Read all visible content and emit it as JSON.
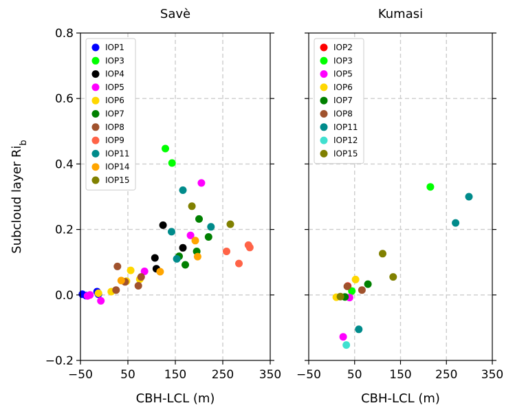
{
  "chart_data": {
    "type": "scatter",
    "ylabel": "Subcloud layer Ri",
    "ylabel_subscript": "b",
    "ylim": [
      -0.2,
      0.8
    ],
    "yticks": [
      {
        "value": -0.2,
        "label": "−0.2"
      },
      {
        "value": 0.0,
        "label": "0.0"
      },
      {
        "value": 0.2,
        "label": "0.2"
      },
      {
        "value": 0.4,
        "label": "0.4"
      },
      {
        "value": 0.6,
        "label": "0.6"
      },
      {
        "value": 0.8,
        "label": "0.8"
      }
    ],
    "grid": true,
    "legend_position": "top-left",
    "panels": [
      {
        "title": "Savè",
        "xlabel": "CBH-LCL (m)",
        "xlim": [
          -50,
          350
        ],
        "xticks": [
          {
            "value": -50,
            "label": "−50"
          },
          {
            "value": 50,
            "label": "50"
          },
          {
            "value": 150,
            "label": "150"
          },
          {
            "value": 250,
            "label": "250"
          },
          {
            "value": 350,
            "label": "350"
          }
        ],
        "series": [
          {
            "name": "IOP1",
            "color": "#0000ff",
            "points": [
              [
                -46,
                0.002
              ],
              [
                -38,
                -0.002
              ],
              [
                -15,
                0.01
              ],
              [
                -12,
                0.002
              ]
            ]
          },
          {
            "name": "IOP3",
            "color": "#00ff00",
            "points": [
              [
                129,
                0.447
              ],
              [
                143,
                0.403
              ]
            ]
          },
          {
            "name": "IOP4",
            "color": "#000000",
            "points": [
              [
                124,
                0.213
              ],
              [
                107,
                0.113
              ],
              [
                110,
                0.08
              ],
              [
                166,
                0.144
              ]
            ]
          },
          {
            "name": "IOP5",
            "color": "#ff00ff",
            "points": [
              [
                -35,
                -0.003
              ],
              [
                -30,
                0.0
              ],
              [
                -7,
                -0.018
              ],
              [
                85,
                0.072
              ],
              [
                182,
                0.182
              ],
              [
                205,
                0.342
              ]
            ]
          },
          {
            "name": "IOP6",
            "color": "#ffd700",
            "points": [
              [
                -12,
                0.005
              ],
              [
                15,
                0.01
              ],
              [
                56,
                0.075
              ],
              [
                47,
                0.042
              ],
              [
                75,
                0.048
              ]
            ]
          },
          {
            "name": "IOP7",
            "color": "#008000",
            "points": [
              [
                158,
                0.118
              ],
              [
                171,
                0.092
              ],
              [
                195,
                0.133
              ],
              [
                200,
                0.232
              ],
              [
                220,
                0.177
              ]
            ]
          },
          {
            "name": "IOP8",
            "color": "#a0522d",
            "points": [
              [
                28,
                0.087
              ],
              [
                25,
                0.015
              ],
              [
                44,
                0.04
              ],
              [
                72,
                0.028
              ],
              [
                78,
                0.055
              ]
            ]
          },
          {
            "name": "IOP9",
            "color": "#ff6347",
            "points": [
              [
                258,
                0.133
              ],
              [
                284,
                0.096
              ],
              [
                304,
                0.152
              ],
              [
                307,
                0.145
              ]
            ]
          },
          {
            "name": "IOP11",
            "color": "#008b8b",
            "points": [
              [
                142,
                0.193
              ],
              [
                166,
                0.32
              ],
              [
                153,
                0.11
              ],
              [
                225,
                0.208
              ]
            ]
          },
          {
            "name": "IOP14",
            "color": "#ffa500",
            "points": [
              [
                36,
                0.044
              ],
              [
                118,
                0.071
              ],
              [
                192,
                0.166
              ],
              [
                197,
                0.117
              ]
            ]
          },
          {
            "name": "IOP15",
            "color": "#808000",
            "points": [
              [
                185,
                0.271
              ],
              [
                266,
                0.216
              ]
            ]
          }
        ]
      },
      {
        "title": "Kumasi",
        "xlabel": "CBH-LCL (m)",
        "xlim": [
          -50,
          350
        ],
        "xticks": [
          {
            "value": -50,
            "label": "−50"
          },
          {
            "value": 50,
            "label": "50"
          },
          {
            "value": 150,
            "label": "150"
          },
          {
            "value": 250,
            "label": "250"
          },
          {
            "value": 350,
            "label": "350"
          }
        ],
        "series": [
          {
            "name": "IOP2",
            "color": "#ff0000",
            "points": [
              [
                35,
                0.027
              ]
            ]
          },
          {
            "name": "IOP3",
            "color": "#00ff00",
            "points": [
              [
                44,
                0.012
              ],
              [
                215,
                0.33
              ]
            ]
          },
          {
            "name": "IOP5",
            "color": "#ff00ff",
            "points": [
              [
                39,
                -0.008
              ],
              [
                25,
                -0.128
              ]
            ]
          },
          {
            "name": "IOP6",
            "color": "#ffd700",
            "points": [
              [
                10,
                -0.007
              ],
              [
                52,
                0.047
              ]
            ]
          },
          {
            "name": "IOP7",
            "color": "#008000",
            "points": [
              [
                29,
                -0.006
              ],
              [
                79,
                0.033
              ]
            ]
          },
          {
            "name": "IOP8",
            "color": "#a0522d",
            "points": [
              [
                34,
                0.026
              ],
              [
                66,
                0.015
              ]
            ]
          },
          {
            "name": "IOP11",
            "color": "#008b8b",
            "points": [
              [
                59,
                -0.105
              ],
              [
                270,
                0.22
              ],
              [
                299,
                0.3
              ]
            ]
          },
          {
            "name": "IOP12",
            "color": "#40e0d0",
            "points": [
              [
                32,
                -0.153
              ]
            ]
          },
          {
            "name": "IOP15",
            "color": "#808000",
            "points": [
              [
                19,
                -0.005
              ],
              [
                111,
                0.126
              ],
              [
                134,
                0.055
              ]
            ]
          }
        ]
      }
    ]
  }
}
